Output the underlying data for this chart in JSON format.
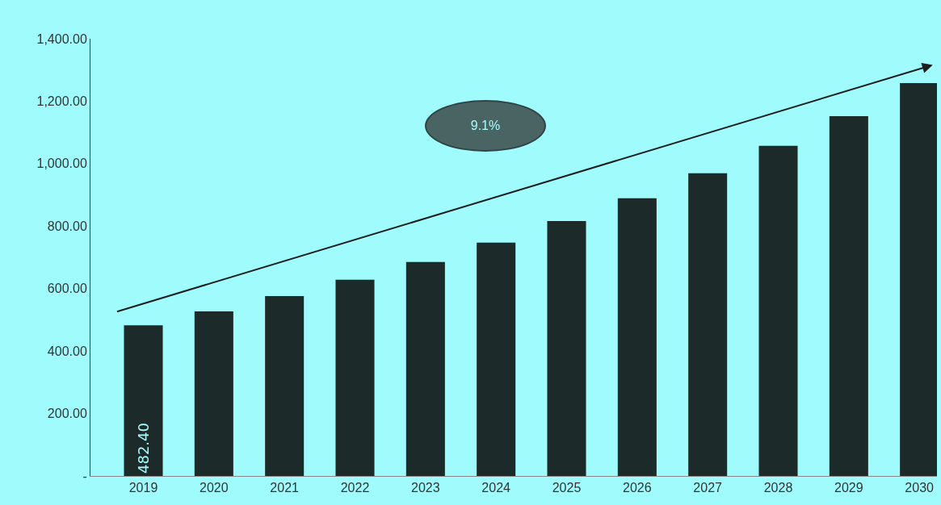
{
  "chart_data": {
    "type": "bar",
    "categories": [
      "2019",
      "2020",
      "2021",
      "2022",
      "2023",
      "2024",
      "2025",
      "2026",
      "2027",
      "2028",
      "2029",
      "2030"
    ],
    "values": [
      482.4,
      527,
      576,
      628,
      685,
      747,
      816,
      889,
      969,
      1057,
      1152,
      1258
    ],
    "color": "#1c2a2a",
    "value_labels": [
      "482.40",
      null,
      null,
      null,
      null,
      null,
      null,
      null,
      null,
      null,
      null,
      null
    ],
    "ylim": [
      0,
      1400
    ],
    "yticks": [
      {
        "value": 0,
        "label": "-"
      },
      {
        "value": 200,
        "label": "200.00"
      },
      {
        "value": 400,
        "label": "400.00"
      },
      {
        "value": 600,
        "label": "600.00"
      },
      {
        "value": 800,
        "label": "800.00"
      },
      {
        "value": 1000,
        "label": "1,000.00"
      },
      {
        "value": 1200,
        "label": "1,200.00"
      },
      {
        "value": 1400,
        "label": "1,400.00"
      }
    ],
    "grid": false,
    "legend": false,
    "annotations": [
      "9.1%"
    ]
  }
}
